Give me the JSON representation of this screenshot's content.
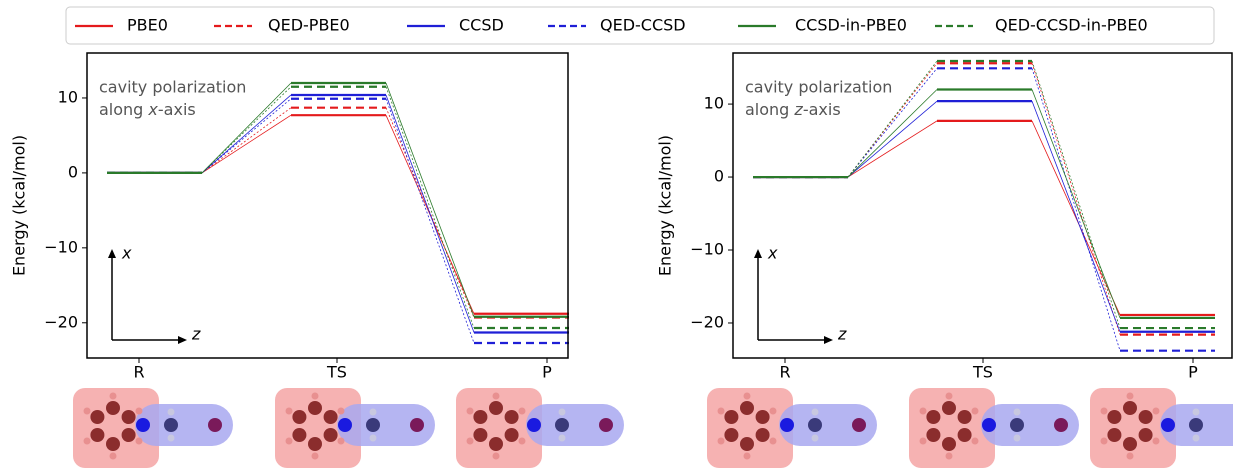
{
  "chart_data": [
    {
      "type": "level",
      "categories": [
        "R",
        "TS",
        "P"
      ],
      "ylabel": "Energy (kcal/mol)",
      "ylim": [
        -24.7,
        16
      ],
      "yticks": [
        {
          "value": -20,
          "label": "−20"
        },
        {
          "value": -10,
          "label": "−10"
        },
        0,
        10
      ],
      "annotation": {
        "line1": "cavity polarization",
        "line2_pre": "along ",
        "axis": "x",
        "line2_post": "-axis"
      },
      "inset_axes": [
        "x",
        "z"
      ],
      "series": [
        {
          "name": "PBE0",
          "color": "#e41a1c",
          "dashed": false,
          "values": [
            0,
            7.7,
            -18.8
          ]
        },
        {
          "name": "QED-PBE0",
          "color": "#e41a1c",
          "dashed": true,
          "values": [
            0,
            8.7,
            -19.3
          ]
        },
        {
          "name": "CCSD",
          "color": "#1f1fd6",
          "dashed": false,
          "values": [
            0,
            10.4,
            -21.3
          ]
        },
        {
          "name": "QED-CCSD",
          "color": "#1f1fd6",
          "dashed": true,
          "values": [
            0,
            9.9,
            -22.7
          ]
        },
        {
          "name": "CCSD-in-PBE0",
          "color": "#2a7a2a",
          "dashed": false,
          "values": [
            0,
            12.0,
            -19.2
          ]
        },
        {
          "name": "QED-CCSD-in-PBE0",
          "color": "#2a7a2a",
          "dashed": true,
          "values": [
            0,
            11.5,
            -20.7
          ]
        }
      ]
    },
    {
      "type": "level",
      "categories": [
        "R",
        "TS",
        "P"
      ],
      "ylabel": "Energy (kcal/mol)",
      "ylim": [
        -24.8,
        17
      ],
      "yticks": [
        {
          "value": -20,
          "label": "−20"
        },
        {
          "value": -10,
          "label": "−10"
        },
        0,
        10
      ],
      "annotation": {
        "line1": "cavity polarization",
        "line2_pre": "along ",
        "axis": "z",
        "line2_post": "-axis"
      },
      "inset_axes": [
        "x",
        "z"
      ],
      "series": [
        {
          "color": "#e41a1c",
          "dashed": false,
          "values": [
            0,
            7.7,
            -18.9
          ]
        },
        {
          "color": "#e41a1c",
          "dashed": true,
          "values": [
            0,
            15.6,
            -21.6
          ]
        },
        {
          "color": "#1f1fd6",
          "dashed": false,
          "values": [
            0,
            10.4,
            -21.2
          ]
        },
        {
          "color": "#1f1fd6",
          "dashed": true,
          "values": [
            0,
            14.9,
            -23.8
          ]
        },
        {
          "color": "#2a7a2a",
          "dashed": false,
          "values": [
            0,
            12.0,
            -19.3
          ]
        },
        {
          "color": "#2a7a2a",
          "dashed": true,
          "values": [
            0,
            15.9,
            -20.7
          ]
        }
      ]
    }
  ]
}
